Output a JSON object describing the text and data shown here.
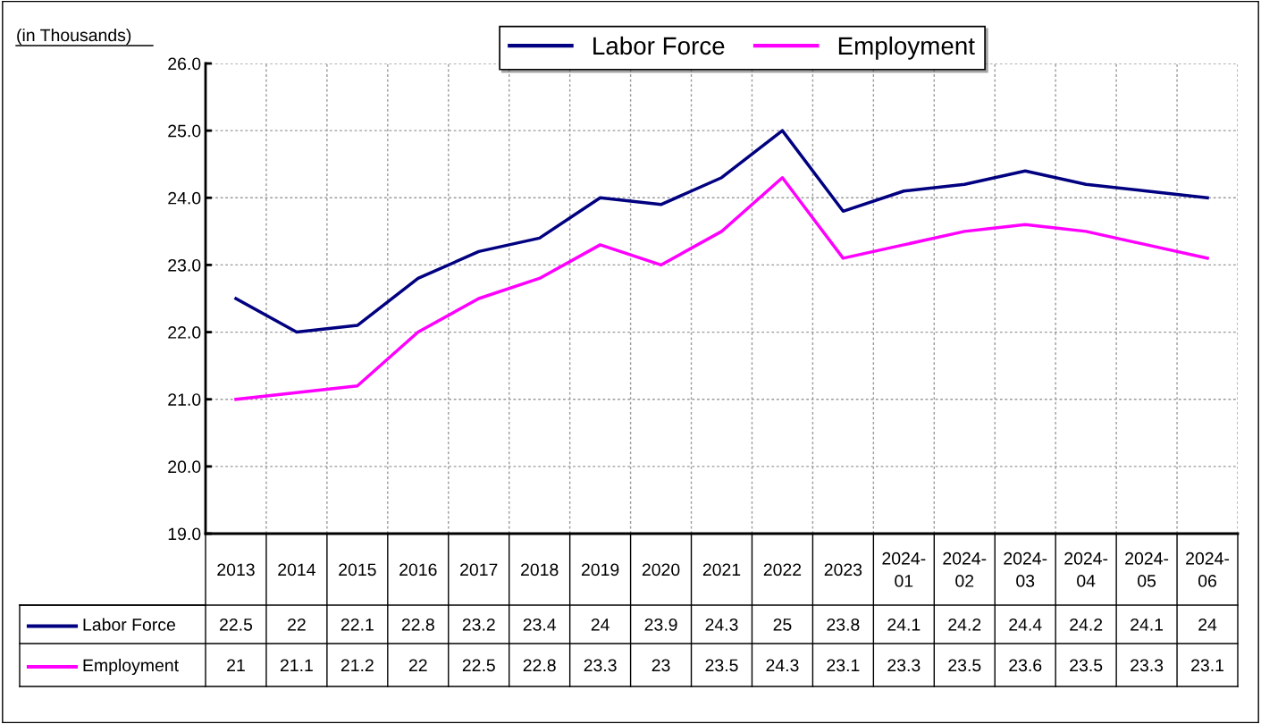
{
  "chart_data": {
    "type": "line",
    "ylabel": "(in Thousands)",
    "categories": [
      "2013",
      "2014",
      "2015",
      "2016",
      "2017",
      "2018",
      "2019",
      "2020",
      "2021",
      "2022",
      "2023",
      "2024-01",
      "2024-02",
      "2024-03",
      "2024-04",
      "2024-05",
      "2024-06"
    ],
    "series": [
      {
        "name": "Labor Force",
        "color": "#000080",
        "values": [
          22.5,
          22,
          22.1,
          22.8,
          23.2,
          23.4,
          24,
          23.9,
          24.3,
          25,
          23.8,
          24.1,
          24.2,
          24.4,
          24.2,
          24.1,
          24
        ]
      },
      {
        "name": "Employment",
        "color": "#ff00ff",
        "values": [
          21,
          21.1,
          21.2,
          22,
          22.5,
          22.8,
          23.3,
          23,
          23.5,
          24.3,
          23.1,
          23.3,
          23.5,
          23.6,
          23.5,
          23.3,
          23.1
        ]
      }
    ],
    "ylim": [
      19,
      26
    ],
    "yticks": [
      {
        "value": 19,
        "label": "19.0"
      },
      {
        "value": 20,
        "label": "20.0"
      },
      {
        "value": 21,
        "label": "21.0"
      },
      {
        "value": 22,
        "label": "22.0"
      },
      {
        "value": 23,
        "label": "23.0"
      },
      {
        "value": 24,
        "label": "24.0"
      },
      {
        "value": 25,
        "label": "25.0"
      },
      {
        "value": 26,
        "label": "26.0"
      }
    ],
    "grid": true,
    "legend": "top",
    "marker": "none",
    "line_style": "solid",
    "data_labels": true
  }
}
